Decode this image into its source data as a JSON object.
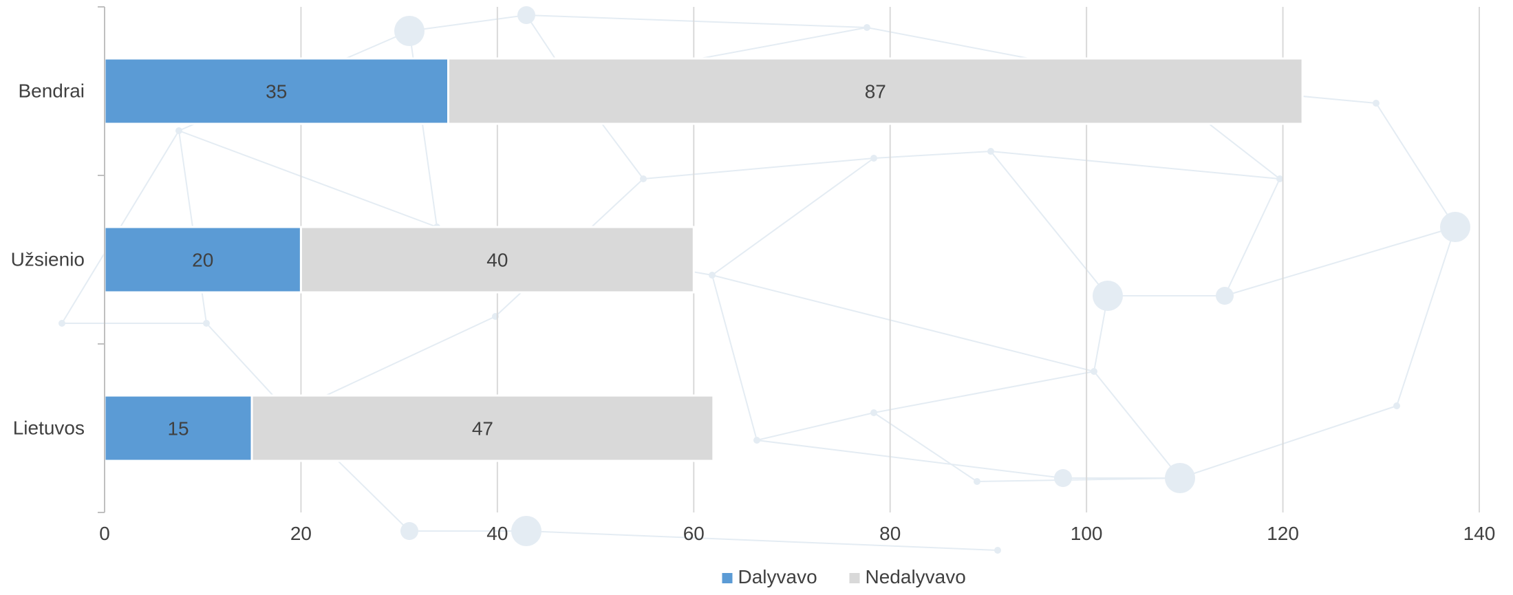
{
  "chart_data": {
    "type": "bar",
    "orientation": "horizontal",
    "stacked": true,
    "categories": [
      "Lietuvos",
      "Užsienio",
      "Bendrai"
    ],
    "series": [
      {
        "name": "Dalyvavo",
        "values": [
          15,
          20,
          35
        ],
        "color": "#5B9BD5"
      },
      {
        "name": "Nedalyvavo",
        "values": [
          47,
          40,
          87
        ],
        "color": "#D9D9D9"
      }
    ],
    "xlim": [
      0,
      140
    ],
    "xticks": [
      0,
      20,
      40,
      60,
      80,
      100,
      120,
      140
    ],
    "grid": true,
    "legend_position": "bottom",
    "data_labels": true,
    "title": "",
    "xlabel": "",
    "ylabel": ""
  },
  "colors": {
    "gridline": "#D9D9D9",
    "axis": "#BFBFBF",
    "text": "#404040",
    "background_network": "#E4ECF3"
  }
}
